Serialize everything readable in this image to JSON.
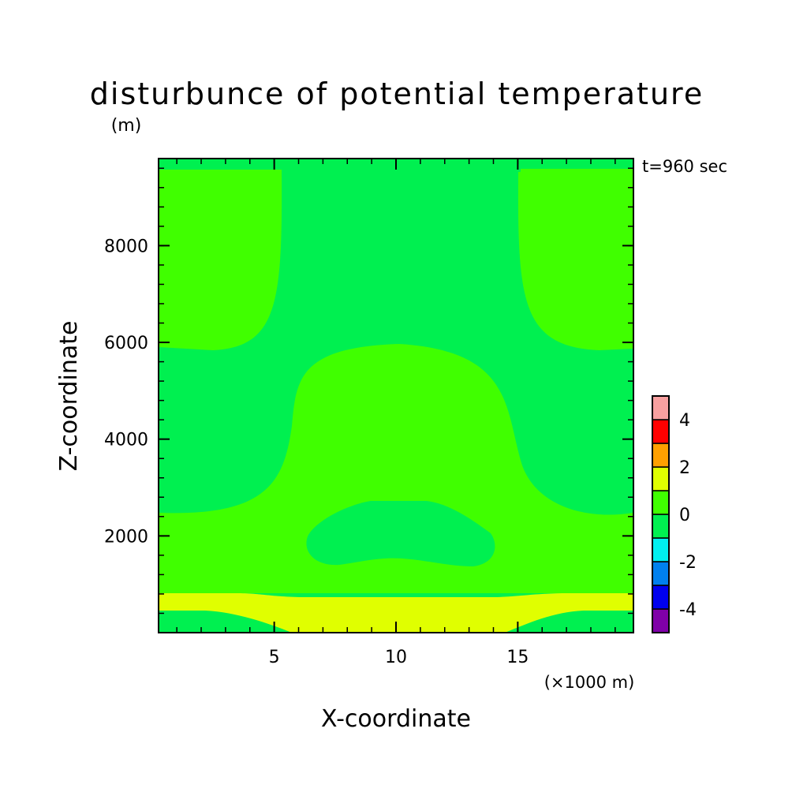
{
  "chart_data": {
    "type": "heatmap",
    "title": "disturbunce of potential temperature",
    "subtitle": "(m)",
    "time_label": "t=960 sec",
    "xlabel": "X-coordinate",
    "x_unit_label": "(×1000 m)",
    "ylabel": "Z-coordinate",
    "xlim": [
      0.25,
      19.75
    ],
    "ylim": [
      0,
      9800
    ],
    "x_ticks": [
      5,
      10,
      15
    ],
    "x_tick_labels": [
      "5",
      "10",
      "15"
    ],
    "y_ticks": [
      2000,
      4000,
      6000,
      8000
    ],
    "y_tick_labels": [
      "2000",
      "4000",
      "6000",
      "8000"
    ],
    "colorbar": {
      "levels": [
        -5,
        -4,
        -3,
        -2,
        -1,
        0,
        1,
        2,
        3,
        4,
        5
      ],
      "colors": [
        "#7f00a8",
        "#0000ee",
        "#0080ee",
        "#00f0f0",
        "#00f050",
        "#40ff00",
        "#e0ff00",
        "#ffa000",
        "#ff0000",
        "#f8a0a0"
      ],
      "tick_values": [
        4,
        2,
        0,
        -2,
        -4
      ],
      "tick_labels": [
        "4",
        "2",
        "0",
        "-2",
        "-4"
      ]
    },
    "regions": [
      {
        "level": "0 to 1",
        "description": "background"
      },
      {
        "level": "-1 to 0",
        "description": "upper central column and lower flanks"
      },
      {
        "level": "0 to 1",
        "description": "upper left and right corners"
      },
      {
        "level": "0 to 1",
        "description": "central bell region"
      },
      {
        "level": "-1 to 0",
        "description": "low central oval"
      },
      {
        "level": "1 to 2",
        "description": "surface band"
      }
    ],
    "grid": false
  }
}
